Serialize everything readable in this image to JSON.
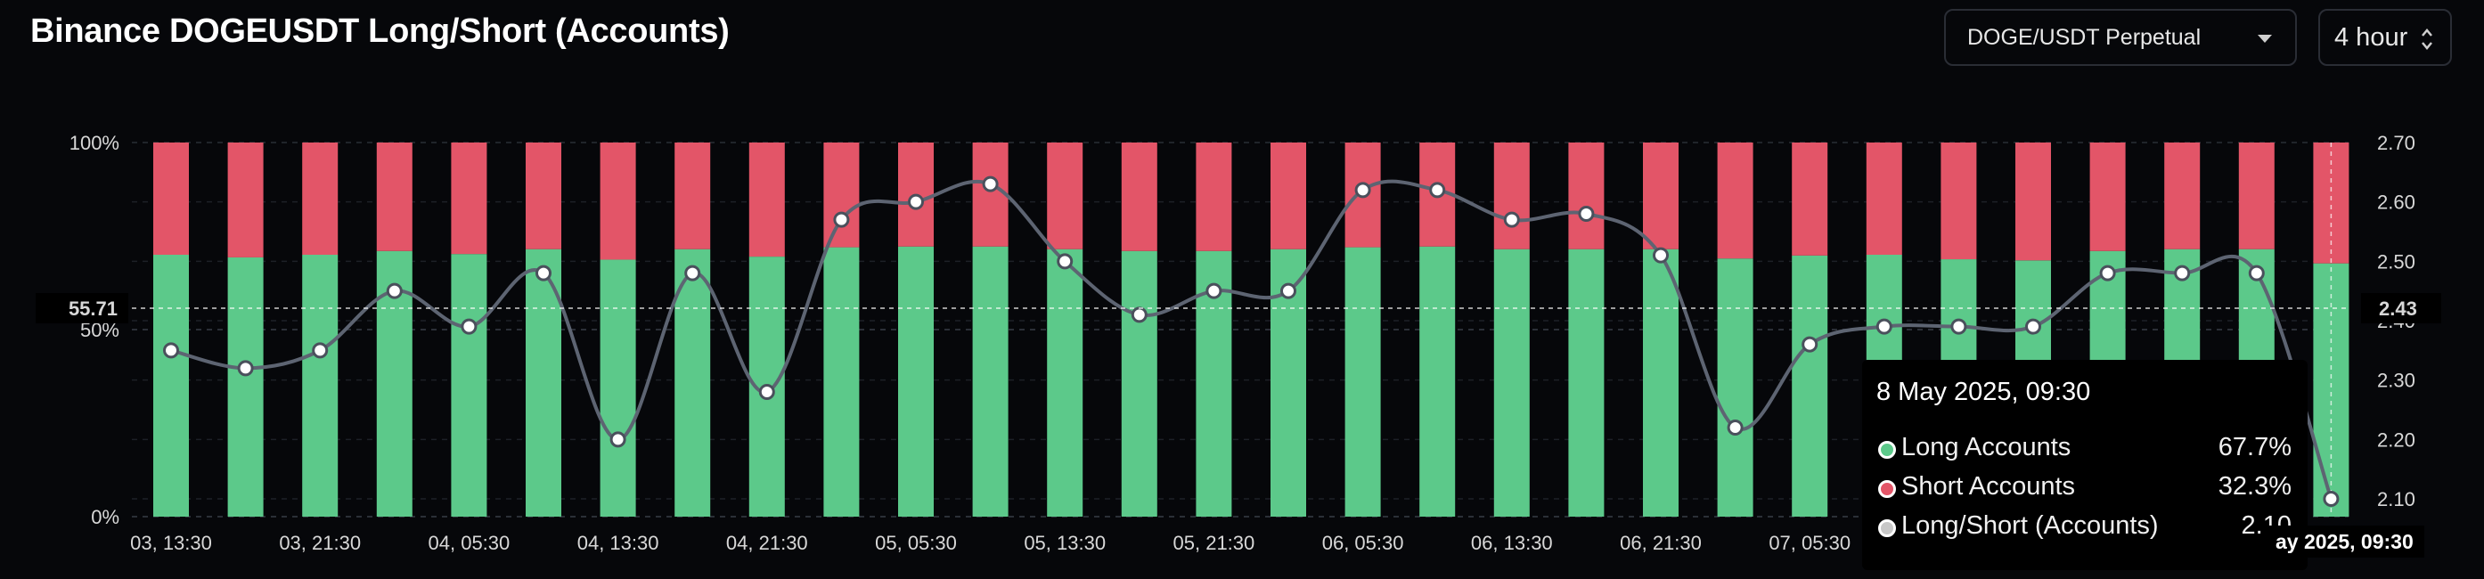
{
  "header": {
    "title": "Binance DOGEUSDT Long/Short (Accounts)",
    "market_select": "DOGE/USDT Perpetual",
    "interval_select": "4 hour"
  },
  "colors": {
    "long": "#5cc98a",
    "short": "#e35568",
    "ratio_line": "#5d6472",
    "background": "#06070a"
  },
  "chart_data": {
    "type": "bar",
    "title": "Binance DOGEUSDT Long/Short (Accounts)",
    "stacked": true,
    "x_tick_labels": [
      "03, 13:30",
      "03, 21:30",
      "04, 05:30",
      "04, 13:30",
      "04, 21:30",
      "05, 05:30",
      "05, 13:30",
      "05, 21:30",
      "06, 05:30",
      "06, 13:30",
      "06, 21:30",
      "07, 05:30"
    ],
    "left_axis": {
      "ticks": [
        "0%",
        "50%",
        "100%"
      ],
      "range": [
        0,
        100
      ]
    },
    "right_axis": {
      "ticks": [
        "2.10",
        "2.20",
        "2.30",
        "2.40",
        "2.50",
        "2.60",
        "2.70"
      ],
      "range": [
        2.07,
        2.7
      ]
    },
    "crosshair": {
      "left_value": "55.71",
      "right_value": "2.43"
    },
    "series": [
      {
        "name": "Long Accounts",
        "axis": "left",
        "values": [
          70.0,
          69.3,
          70.0,
          71.0,
          70.2,
          71.5,
          68.7,
          71.5,
          69.5,
          72.0,
          72.2,
          72.2,
          71.5,
          71.0,
          71.0,
          71.5,
          72.0,
          72.2,
          71.5,
          71.5,
          71.5,
          69.0,
          69.8,
          70.0,
          68.8,
          68.5,
          71.0,
          71.5,
          71.5,
          67.7
        ]
      },
      {
        "name": "Short Accounts",
        "axis": "left",
        "values": [
          30.0,
          30.7,
          30.0,
          29.0,
          29.8,
          28.5,
          31.3,
          28.5,
          30.5,
          28.0,
          27.8,
          27.8,
          28.5,
          29.0,
          29.0,
          28.5,
          28.0,
          27.8,
          28.5,
          28.5,
          28.5,
          31.0,
          30.2,
          30.0,
          31.2,
          31.5,
          29.0,
          28.5,
          28.5,
          32.3
        ]
      },
      {
        "name": "Long/Short (Accounts)",
        "axis": "right",
        "type": "line",
        "values": [
          2.35,
          2.32,
          2.35,
          2.45,
          2.39,
          2.48,
          2.2,
          2.48,
          2.28,
          2.57,
          2.6,
          2.63,
          2.5,
          2.41,
          2.45,
          2.45,
          2.62,
          2.62,
          2.57,
          2.58,
          2.51,
          2.22,
          2.36,
          2.39,
          2.39,
          2.39,
          2.48,
          2.48,
          2.48,
          2.1
        ]
      }
    ],
    "grid": true
  },
  "tooltip": {
    "time": "8 May 2025, 09:30",
    "rows": [
      {
        "label": "Long Accounts",
        "value": "67.7%",
        "color": "#5cc98a"
      },
      {
        "label": "Short Accounts",
        "value": "32.3%",
        "color": "#e35568"
      },
      {
        "label": "Long/Short (Accounts)",
        "value": "2.10",
        "color": "#c8c8c8"
      }
    ]
  },
  "end_time_label": "ay 2025, 09:30"
}
